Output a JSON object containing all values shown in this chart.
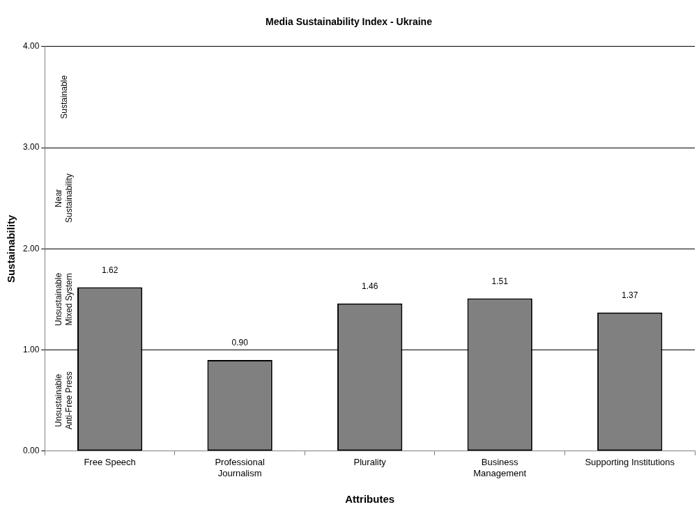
{
  "chart_data": {
    "type": "bar",
    "title": "Media Sustainability Index - Ukraine",
    "xlabel": "Attributes",
    "ylabel": "Sustainability",
    "categories": [
      "Free Speech",
      "Professional\nJournalism",
      "Plurality",
      "Business\nManagement",
      "Supporting Institutions"
    ],
    "values": [
      1.62,
      0.9,
      1.46,
      1.51,
      1.37
    ],
    "color": "#808080",
    "ylim": [
      0,
      4
    ],
    "yticks": [
      {
        "value": 0,
        "label": "0.00"
      },
      {
        "value": 1,
        "label": "1.00"
      },
      {
        "value": 2,
        "label": "2.00"
      },
      {
        "value": 3,
        "label": "3.00"
      },
      {
        "value": 4,
        "label": "4.00"
      }
    ],
    "value_labels": [
      "1.62",
      "0.90",
      "1.46",
      "1.51",
      "1.37"
    ],
    "grid": "y",
    "legend": false,
    "annotations": [
      "Unsustainable\nAnti-Free Press",
      "Unsustainable\nMixed System",
      "Near\nSustainability",
      "Sustainable"
    ]
  }
}
